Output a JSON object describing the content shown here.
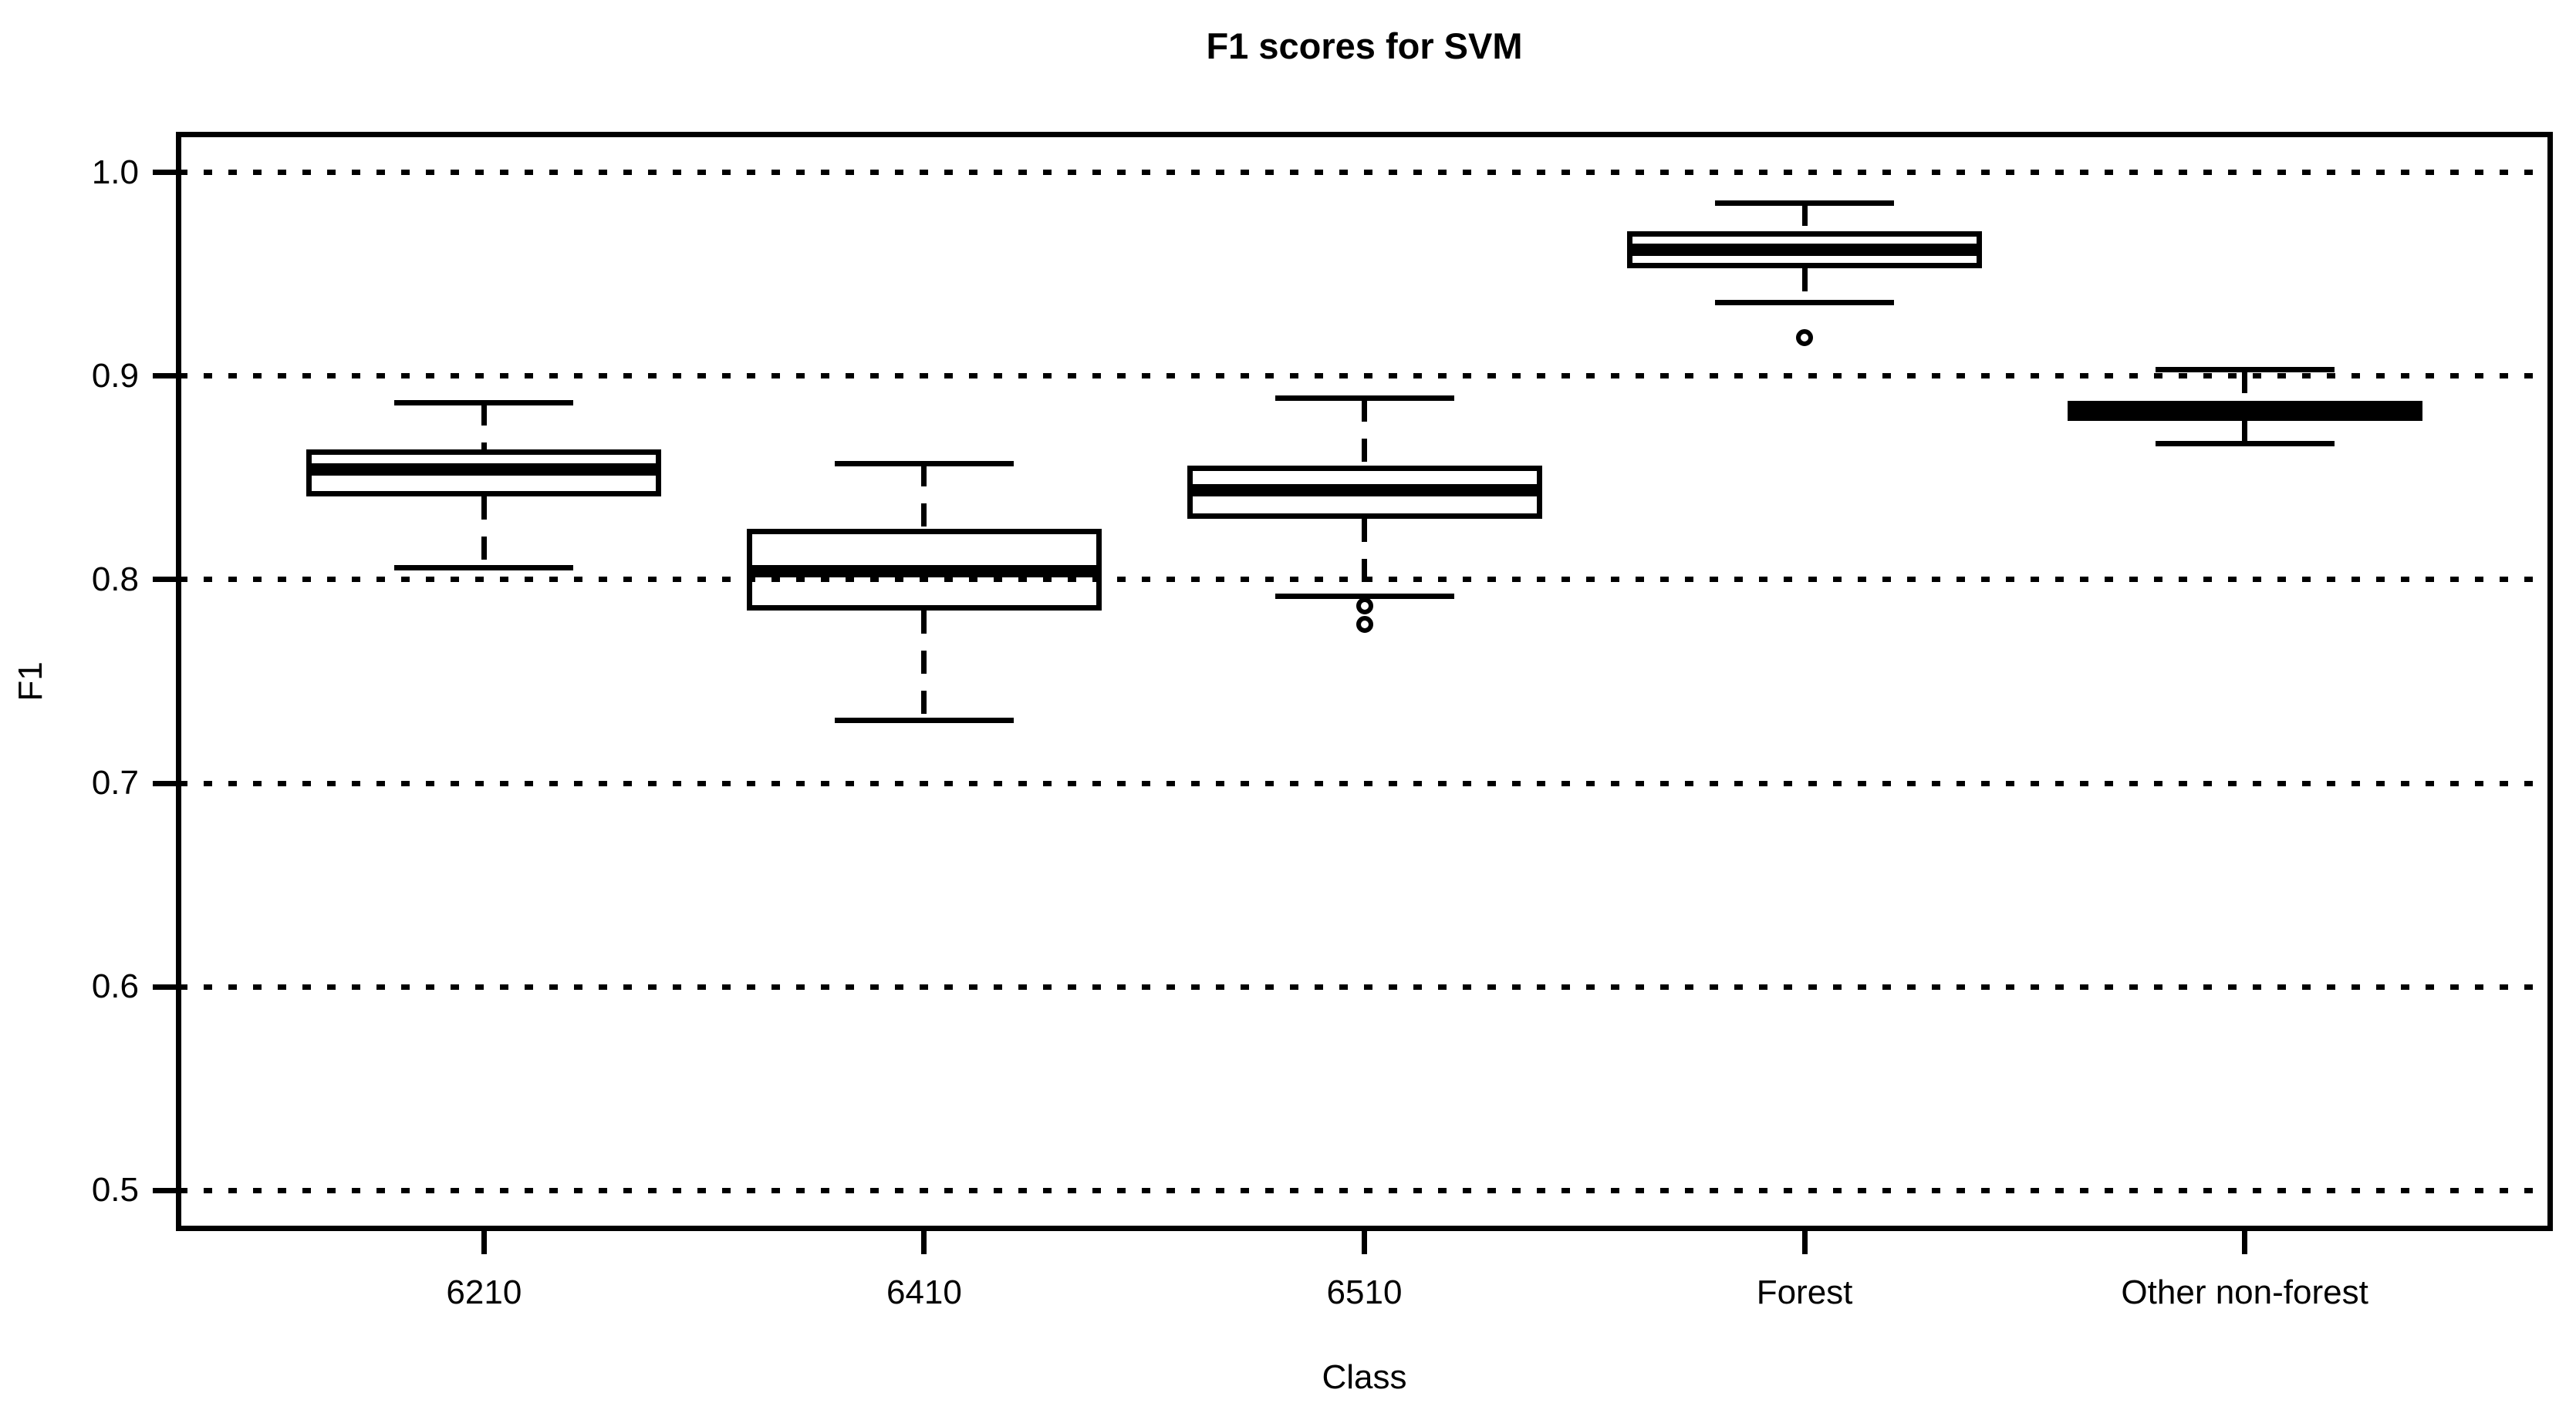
{
  "title": "F1 scores for SVM",
  "x_axis": {
    "label": "Class"
  },
  "y_axis": {
    "label": "F1"
  },
  "chart_data": {
    "type": "boxplot",
    "title": "F1 scores for SVM",
    "xlabel": "Class",
    "ylabel": "F1",
    "categories": [
      "6210",
      "6410",
      "6510",
      "Forest",
      "Other non-forest"
    ],
    "ylim": [
      0.48,
      1.02
    ],
    "ytick_values": [
      1.0,
      0.9,
      0.8,
      0.7,
      0.6,
      0.5
    ],
    "ytick_labels": [
      "1.0",
      "0.9",
      "0.8",
      "0.7",
      "0.6",
      "0.5"
    ],
    "grid": "horizontal dotted lines at each y tick",
    "legend": "none",
    "colors": {
      "line": "#000000",
      "box_fill": "transparent",
      "background": "#ffffff"
    },
    "series": [
      {
        "category": "6210",
        "whisker_low": 0.806,
        "q1": 0.841,
        "median": 0.854,
        "q3": 0.864,
        "whisker_high": 0.887,
        "outliers": []
      },
      {
        "category": "6410",
        "whisker_low": 0.731,
        "q1": 0.785,
        "median": 0.804,
        "q3": 0.825,
        "whisker_high": 0.857,
        "outliers": []
      },
      {
        "category": "6510",
        "whisker_low": 0.792,
        "q1": 0.83,
        "median": 0.844,
        "q3": 0.856,
        "whisker_high": 0.889,
        "outliers": [
          0.787,
          0.778
        ]
      },
      {
        "category": "Forest",
        "whisker_low": 0.936,
        "q1": 0.953,
        "median": 0.962,
        "q3": 0.971,
        "whisker_high": 0.985,
        "outliers": [
          0.919
        ]
      },
      {
        "category": "Other non-forest",
        "whisker_low": 0.867,
        "q1": 0.878,
        "median": 0.883,
        "q3": 0.888,
        "whisker_high": 0.903,
        "outliers": []
      }
    ]
  }
}
